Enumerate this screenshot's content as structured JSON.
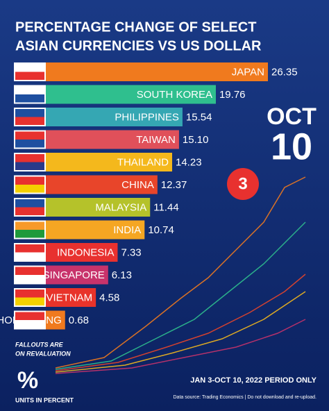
{
  "chart_data": {
    "type": "bar",
    "title_lines": [
      "PERCENTAGE CHANGE OF SELECT",
      "ASIAN CURRENCIES VS US DOLLAR"
    ],
    "categories": [
      "JAPAN",
      "SOUTH KOREA",
      "PHILIPPINES",
      "TAIWAN",
      "THAILAND",
      "CHINA",
      "MALAYSIA",
      "INDIA",
      "INDONESIA",
      "SINGAPORE",
      "VIETNAM",
      "HONG KONG"
    ],
    "values": [
      26.35,
      19.76,
      15.54,
      15.1,
      14.23,
      12.37,
      11.44,
      10.74,
      7.33,
      6.13,
      4.58,
      0.68
    ],
    "value_labels": [
      "26.35",
      "19.76",
      "15.54",
      "15.10",
      "14.23",
      "12.37",
      "11.44",
      "10.74",
      "7.33",
      "6.13",
      "4.58",
      "0.68"
    ],
    "colors": [
      "#f07a1e",
      "#2fbf8e",
      "#35a7b3",
      "#e0505a",
      "#f4b81c",
      "#e8452a",
      "#b5c22a",
      "#f5a623",
      "#e8312f",
      "#c8336b",
      "#e8332a",
      "#f07a1e"
    ],
    "date_month": "OCT",
    "date_day": "10",
    "badge": "3",
    "note_lines": [
      "FALLOUTS ARE",
      "ON REVALUATION"
    ],
    "unit_symbol": "%",
    "unit_label": "UNITS IN PERCENT",
    "period": "JAN 3-OCT 10, 2022 PERIOD ONLY",
    "source": "Data source: Trading Economics  |  Do not download and re-upload."
  }
}
